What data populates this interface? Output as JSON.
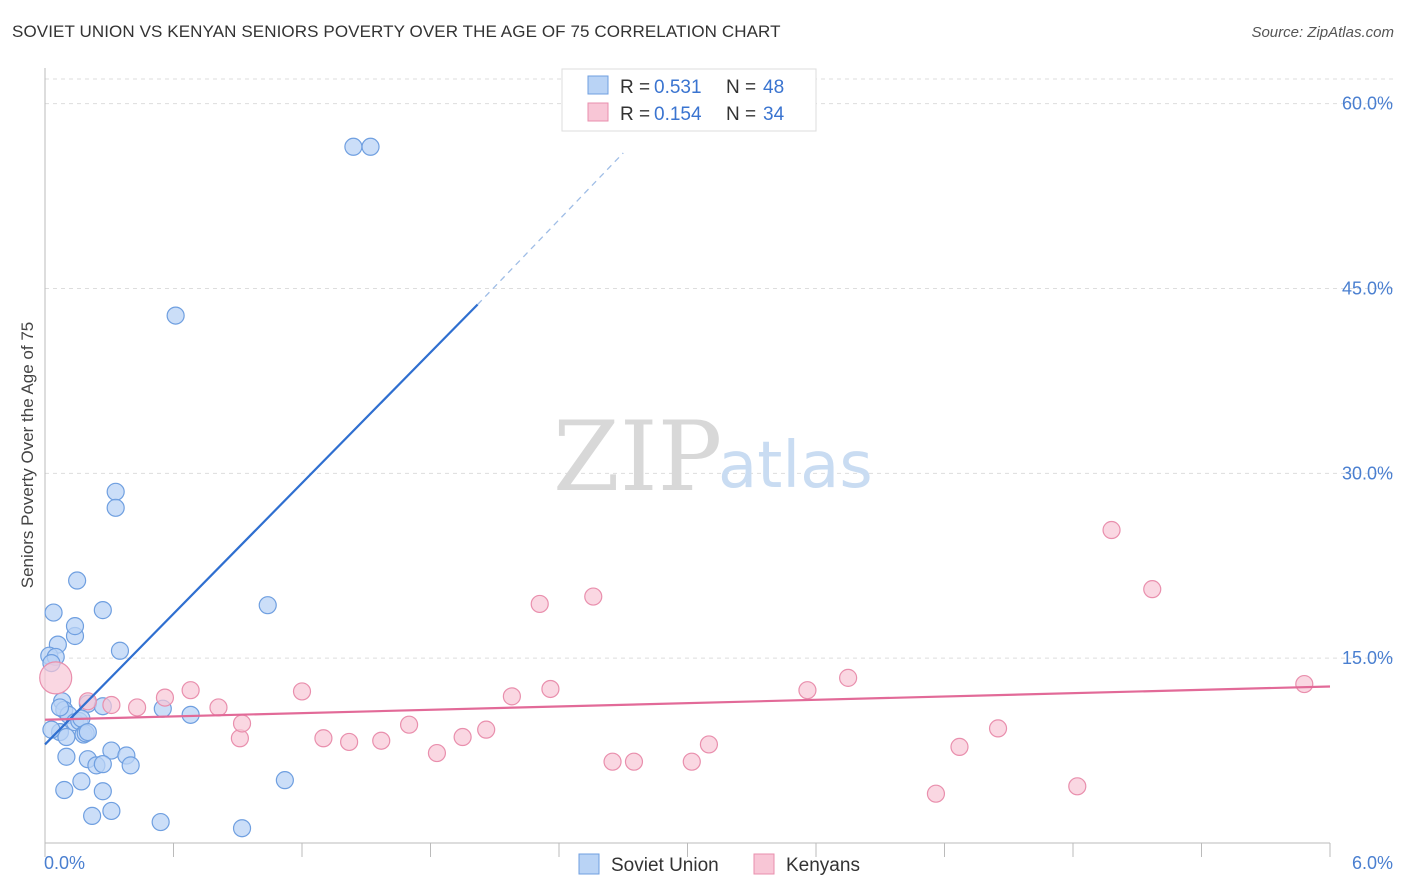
{
  "header": {
    "title": "SOVIET UNION VS KENYAN SENIORS POVERTY OVER THE AGE OF 75 CORRELATION CHART",
    "source": "Source: ZipAtlas.com"
  },
  "watermark": {
    "zip": "ZIP",
    "atlas": "atlas"
  },
  "colors": {
    "soviet_fill": "#b9d3f5",
    "soviet_stroke": "#6f9fe0",
    "soviet_line": "#2f6fd0",
    "kenyan_fill": "#f8c6d6",
    "kenyan_stroke": "#e98fad",
    "kenyan_line": "#e26a98",
    "grid": "#dddddd",
    "accent_text": "#3a74d0"
  },
  "legend": {
    "r_label": "R = ",
    "n_label": "N = ",
    "entries": [
      {
        "r": "0.531",
        "n": "48"
      },
      {
        "r": "0.154",
        "n": "34"
      }
    ]
  },
  "chart_data": {
    "type": "scatter",
    "title": "SOVIET UNION VS KENYAN SENIORS POVERTY OVER THE AGE OF 75 CORRELATION CHART",
    "xlabel": "",
    "ylabel": "Seniors Poverty Over the Age of 75",
    "xlim": [
      0,
      6
    ],
    "ylim": [
      0,
      62
    ],
    "x_tick_labels": [
      "0.0%",
      "6.0%"
    ],
    "y_ticks": [
      15,
      30,
      45,
      60
    ],
    "y_tick_labels": [
      "15.0%",
      "30.0%",
      "45.0%",
      "60.0%"
    ],
    "series": [
      {
        "name": "Soviet Union",
        "trend": {
          "x0": 0.0,
          "y0": 8.0,
          "x1": 2.02,
          "y1": 43.7,
          "dash_to_x": 2.7,
          "dash_to_y": 56.0
        },
        "points": [
          [
            1.44,
            56.5
          ],
          [
            1.52,
            56.5
          ],
          [
            0.61,
            42.8
          ],
          [
            0.33,
            28.5
          ],
          [
            0.33,
            27.2
          ],
          [
            0.15,
            21.3
          ],
          [
            0.04,
            18.7
          ],
          [
            0.27,
            18.9
          ],
          [
            1.04,
            19.3
          ],
          [
            0.14,
            16.8
          ],
          [
            0.14,
            17.6
          ],
          [
            0.06,
            16.1
          ],
          [
            0.35,
            15.6
          ],
          [
            0.02,
            15.2
          ],
          [
            0.05,
            15.1
          ],
          [
            0.03,
            14.6
          ],
          [
            0.08,
            11.5
          ],
          [
            0.2,
            11.3
          ],
          [
            0.27,
            11.1
          ],
          [
            0.55,
            10.9
          ],
          [
            0.68,
            10.4
          ],
          [
            0.09,
            10.8
          ],
          [
            0.11,
            10.4
          ],
          [
            0.14,
            9.8
          ],
          [
            0.16,
            9.9
          ],
          [
            0.17,
            10.1
          ],
          [
            0.07,
            9.0
          ],
          [
            0.1,
            8.6
          ],
          [
            0.18,
            8.8
          ],
          [
            0.19,
            8.9
          ],
          [
            0.2,
            9.0
          ],
          [
            0.31,
            7.5
          ],
          [
            0.38,
            7.1
          ],
          [
            0.1,
            7.0
          ],
          [
            0.2,
            6.8
          ],
          [
            0.24,
            6.3
          ],
          [
            0.27,
            6.4
          ],
          [
            0.4,
            6.3
          ],
          [
            0.17,
            5.0
          ],
          [
            0.09,
            4.3
          ],
          [
            0.27,
            4.2
          ],
          [
            0.31,
            2.6
          ],
          [
            1.12,
            5.1
          ],
          [
            0.22,
            2.2
          ],
          [
            0.54,
            1.7
          ],
          [
            0.92,
            1.2
          ],
          [
            0.07,
            11.0
          ],
          [
            0.03,
            9.2
          ]
        ]
      },
      {
        "name": "Kenyans",
        "trend": {
          "x0": 0.0,
          "y0": 10.0,
          "x1": 6.0,
          "y1": 12.7
        },
        "points": [
          [
            0.05,
            13.4
          ],
          [
            0.31,
            11.2
          ],
          [
            0.43,
            11.0
          ],
          [
            0.56,
            11.8
          ],
          [
            0.68,
            12.4
          ],
          [
            0.81,
            11.0
          ],
          [
            0.91,
            8.5
          ],
          [
            0.92,
            9.7
          ],
          [
            1.2,
            12.3
          ],
          [
            1.3,
            8.5
          ],
          [
            1.42,
            8.2
          ],
          [
            1.57,
            8.3
          ],
          [
            1.7,
            9.6
          ],
          [
            1.83,
            7.3
          ],
          [
            1.95,
            8.6
          ],
          [
            2.06,
            9.2
          ],
          [
            2.18,
            11.9
          ],
          [
            2.31,
            19.4
          ],
          [
            2.36,
            12.5
          ],
          [
            2.56,
            20.0
          ],
          [
            2.65,
            6.6
          ],
          [
            2.75,
            6.6
          ],
          [
            3.02,
            6.6
          ],
          [
            3.1,
            8.0
          ],
          [
            3.56,
            12.4
          ],
          [
            3.75,
            13.4
          ],
          [
            4.16,
            4.0
          ],
          [
            4.27,
            7.8
          ],
          [
            4.45,
            9.3
          ],
          [
            4.82,
            4.6
          ],
          [
            4.98,
            25.4
          ],
          [
            5.17,
            20.6
          ],
          [
            5.88,
            12.9
          ],
          [
            0.2,
            11.5
          ]
        ]
      }
    ]
  }
}
